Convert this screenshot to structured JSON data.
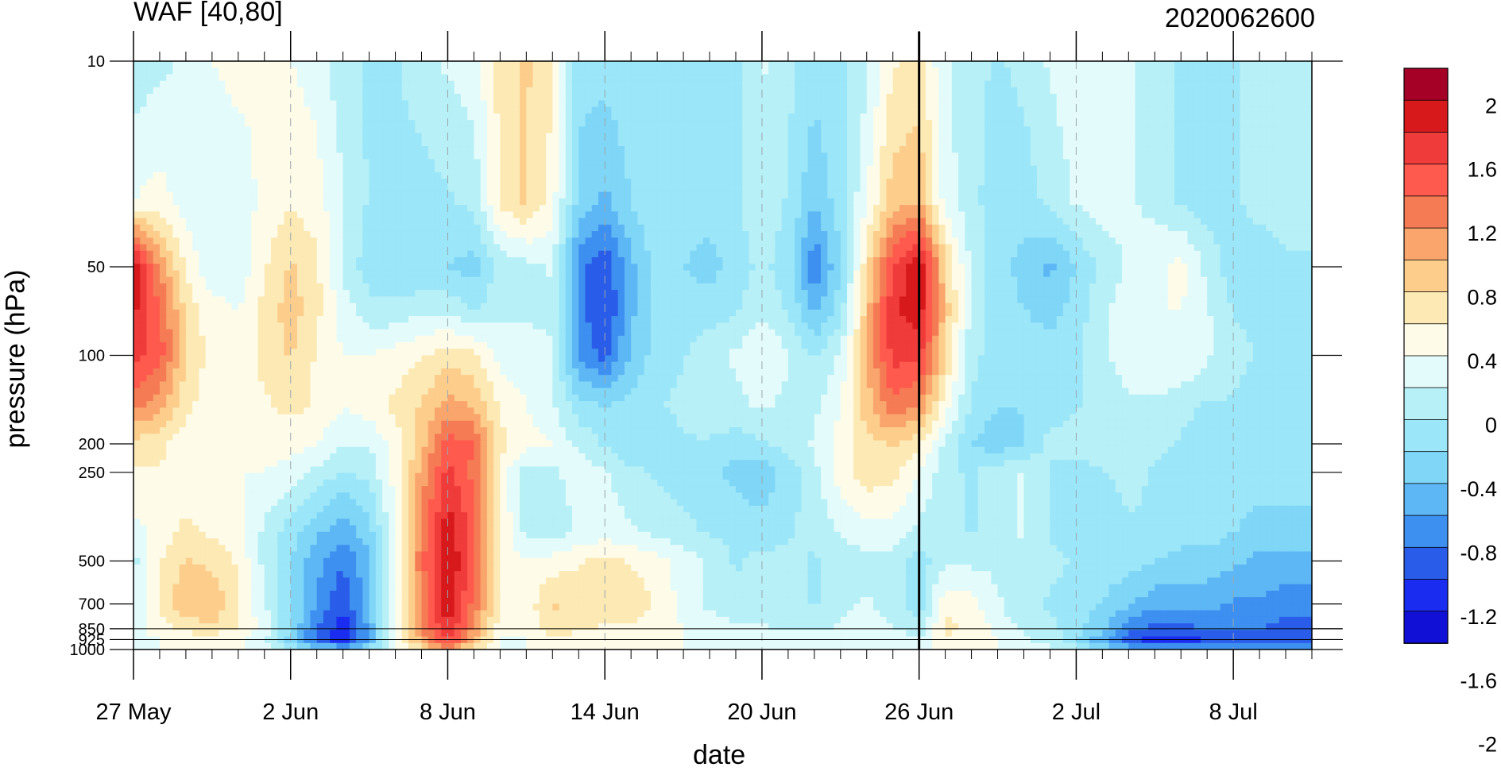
{
  "chart_data": {
    "type": "heatmap",
    "title_left": "WAF [40,80]",
    "title_right": "2020062600",
    "xlabel": "date",
    "ylabel": "pressure (hPa)",
    "x_ticks": [
      "27 May",
      "2 Jun",
      "8 Jun",
      "14 Jun",
      "20 Jun",
      "26 Jun",
      "2 Jul",
      "8 Jul"
    ],
    "x_tick_days": [
      0,
      6,
      12,
      18,
      24,
      30,
      36,
      42
    ],
    "x_range_days": [
      0,
      45
    ],
    "y_ticks": [
      "10",
      "50",
      "100",
      "200",
      "250",
      "500",
      "700",
      "850",
      "925",
      "1000"
    ],
    "y_tick_values": [
      10,
      50,
      100,
      200,
      250,
      500,
      700,
      850,
      925,
      1000
    ],
    "y_scale": "log",
    "y_range": [
      1000,
      10
    ],
    "marker_line_day": 30,
    "colorbar_labels": [
      "2",
      "1.6",
      "1.2",
      "0.8",
      "0.4",
      "0",
      "-0.4",
      "-0.8",
      "-1.2",
      "-1.6",
      "-2"
    ],
    "colorbar_colors": [
      "#a50026",
      "#d7191c",
      "#f03b3b",
      "#ff5a4d",
      "#f57b55",
      "#f9a56c",
      "#fdcd8c",
      "#fce9b4",
      "#fefce8",
      "#e4fbfb",
      "#b7f0f6",
      "#9be6f8",
      "#7fd6f7",
      "#5eb7f5",
      "#3d8ff0",
      "#2a5cea",
      "#1a2cf0",
      "#1010d6"
    ],
    "values_days": [
      0,
      1,
      2,
      3,
      4,
      5,
      6,
      7,
      8,
      9,
      10,
      11,
      12,
      13,
      14,
      15,
      16,
      17,
      18,
      19,
      20,
      21,
      22,
      23,
      24,
      25,
      26,
      27,
      28,
      29,
      30,
      31,
      32,
      33,
      34,
      35,
      36,
      37,
      38,
      39,
      40,
      41,
      42,
      43,
      44,
      45
    ],
    "values_levels": [
      10,
      30,
      50,
      70,
      100,
      150,
      200,
      250,
      400,
      500,
      700,
      850,
      925,
      1000
    ],
    "values": [
      [
        -0.4,
        -0.3,
        -0.2,
        0,
        0.1,
        0.05,
        0,
        -0.1,
        -0.4,
        -0.5,
        -0.5,
        -0.3,
        -0.2,
        -0.1,
        0.3,
        0.5,
        0.3,
        -0.6,
        -0.6,
        -0.5,
        -0.5,
        -0.6,
        -0.6,
        -0.6,
        -0.2,
        -0.4,
        -0.6,
        -0.5,
        -0.3,
        0.2,
        0.3,
        -0.2,
        -0.4,
        -0.5,
        -0.4,
        -0.2,
        -0.1,
        -0.1,
        -0.2,
        -0.3,
        -0.5,
        -0.6,
        -0.5,
        -0.4,
        -0.4,
        -0.4
      ],
      [
        0,
        0.1,
        -0.1,
        -0.2,
        -0.2,
        0.1,
        0.2,
        0.1,
        -0.2,
        -0.5,
        -0.6,
        -0.6,
        -0.5,
        -0.4,
        0.3,
        0.5,
        0.1,
        -0.8,
        -1.0,
        -0.7,
        -0.5,
        -0.6,
        -0.6,
        -0.5,
        -0.3,
        -0.5,
        -0.9,
        -0.6,
        0,
        0.6,
        0.7,
        -0.1,
        -0.4,
        -0.6,
        -0.6,
        -0.4,
        -0.2,
        -0.1,
        -0.2,
        -0.3,
        -0.5,
        -0.6,
        -0.5,
        -0.4,
        -0.4,
        -0.4
      ],
      [
        1.9,
        0.9,
        0.2,
        -0.2,
        -0.2,
        0.2,
        0.5,
        0.3,
        -0.3,
        -0.6,
        -0.7,
        -0.7,
        -0.7,
        -0.8,
        -0.4,
        -0.3,
        -0.2,
        -1.3,
        -1.6,
        -1.0,
        -0.6,
        -0.7,
        -0.8,
        -0.6,
        -0.4,
        -0.6,
        -1.4,
        -0.7,
        0.4,
        1.4,
        1.9,
        0.5,
        -0.3,
        -0.6,
        -0.8,
        -1.0,
        -0.7,
        -0.4,
        -0.2,
        -0.1,
        0.1,
        -0.3,
        -0.6,
        -0.6,
        -0.5,
        -0.5
      ],
      [
        1.7,
        1.2,
        0.4,
        0.1,
        0,
        0.3,
        0.6,
        0.3,
        -0.1,
        -0.4,
        -0.4,
        -0.3,
        -0.3,
        -0.5,
        -0.3,
        -0.3,
        -0.3,
        -1.3,
        -1.7,
        -1.0,
        -0.6,
        -0.6,
        -0.6,
        -0.5,
        -0.3,
        -0.5,
        -1.0,
        -0.6,
        0.6,
        1.6,
        1.8,
        0.6,
        -0.3,
        -0.6,
        -0.7,
        -0.8,
        -0.6,
        -0.3,
        -0.1,
        0,
        0,
        -0.2,
        -0.5,
        -0.5,
        -0.5,
        -0.5
      ],
      [
        1.5,
        1.3,
        0.5,
        0.1,
        0.1,
        0.3,
        0.5,
        0.2,
        0,
        0,
        0.1,
        0.2,
        0.4,
        0.3,
        -0.1,
        -0.1,
        -0.2,
        -1.2,
        -1.5,
        -0.9,
        -0.6,
        -0.5,
        -0.3,
        -0.2,
        0,
        -0.2,
        -0.5,
        -0.2,
        0.7,
        1.5,
        1.5,
        0.5,
        -0.4,
        -0.6,
        -0.6,
        -0.6,
        -0.5,
        -0.3,
        -0.1,
        0,
        0,
        -0.2,
        -0.4,
        -0.5,
        -0.5,
        -0.5
      ],
      [
        1.0,
        0.8,
        0.3,
        0.1,
        0.2,
        0.2,
        0.3,
        0.2,
        0,
        0.1,
        0.3,
        0.5,
        0.8,
        0.7,
        0.2,
        0,
        -0.2,
        -0.6,
        -0.7,
        -0.6,
        -0.5,
        -0.4,
        -0.3,
        -0.3,
        -0.2,
        -0.3,
        -0.3,
        0,
        0.6,
        1.1,
        0.9,
        0.1,
        -0.5,
        -0.7,
        -0.7,
        -0.6,
        -0.5,
        -0.4,
        -0.3,
        -0.3,
        -0.4,
        -0.5,
        -0.5,
        -0.6,
        -0.6,
        -0.6
      ],
      [
        0.4,
        0.3,
        0.1,
        0,
        0.1,
        0.1,
        0.1,
        0,
        -0.2,
        -0.2,
        0.1,
        0.6,
        1.3,
        1.2,
        0.3,
        0.1,
        0,
        -0.3,
        -0.5,
        -0.7,
        -0.7,
        -0.5,
        -0.5,
        -0.6,
        -0.5,
        -0.4,
        -0.2,
        0.1,
        0.4,
        0.5,
        0.3,
        -0.3,
        -0.7,
        -0.9,
        -0.7,
        -0.4,
        -0.3,
        -0.3,
        -0.3,
        -0.4,
        -0.5,
        -0.6,
        -0.6,
        -0.7,
        -0.7,
        -0.7
      ],
      [
        0.2,
        0.2,
        0.1,
        0,
        0,
        0,
        -0.1,
        -0.3,
        -0.5,
        -0.4,
        0.1,
        0.8,
        1.5,
        1.1,
        0.2,
        -0.4,
        -0.3,
        -0.1,
        -0.2,
        -0.4,
        -0.5,
        -0.6,
        -0.6,
        -0.8,
        -0.9,
        -0.6,
        -0.3,
        0.1,
        0.4,
        0.3,
        0,
        -0.4,
        -0.5,
        -0.3,
        -0.2,
        -0.5,
        -0.6,
        -0.5,
        -0.4,
        -0.5,
        -0.6,
        -0.6,
        -0.6,
        -0.6,
        -0.6,
        -0.6
      ],
      [
        -0.1,
        0.1,
        0.3,
        0.2,
        0.1,
        -0.3,
        -0.6,
        -0.9,
        -1.1,
        -0.8,
        0,
        1.0,
        1.8,
        1.3,
        0.2,
        -0.3,
        -0.4,
        -0.2,
        -0.1,
        -0.2,
        -0.3,
        -0.4,
        -0.5,
        -0.5,
        -0.6,
        -0.5,
        -0.4,
        -0.2,
        -0.1,
        -0.1,
        -0.3,
        -0.4,
        -0.5,
        -0.3,
        -0.2,
        -0.5,
        -0.6,
        -0.6,
        -0.5,
        -0.5,
        -0.6,
        -0.6,
        -0.7,
        -0.8,
        -0.8,
        -0.8
      ],
      [
        -0.3,
        0.2,
        0.5,
        0.4,
        0.2,
        -0.3,
        -0.7,
        -1.1,
        -1.4,
        -1.0,
        0,
        1.1,
        1.9,
        1.3,
        0.2,
        0,
        0.1,
        0.2,
        0.3,
        0.2,
        0.1,
        -0.1,
        -0.3,
        -0.5,
        -0.4,
        -0.4,
        -0.5,
        -0.4,
        -0.3,
        -0.3,
        -0.6,
        -0.3,
        -0.3,
        -0.3,
        -0.3,
        -0.4,
        -0.5,
        -0.6,
        -0.6,
        -0.7,
        -0.8,
        -0.8,
        -0.9,
        -1.0,
        -1.0,
        -1.0
      ],
      [
        -0.2,
        0.3,
        0.7,
        0.7,
        0.3,
        -0.2,
        -0.7,
        -1.2,
        -1.6,
        -1.0,
        0,
        1.0,
        1.8,
        1.1,
        0.2,
        0.1,
        0.5,
        0.4,
        0.3,
        0.4,
        0.2,
        -0.1,
        -0.3,
        -0.4,
        -0.3,
        -0.4,
        -0.5,
        -0.3,
        -0.2,
        -0.4,
        -0.6,
        0.2,
        0.1,
        -0.2,
        -0.4,
        -0.5,
        -0.6,
        -0.7,
        -0.9,
        -1.1,
        -1.1,
        -1.1,
        -1.2,
        -1.2,
        -1.3,
        -1.3
      ],
      [
        -0.1,
        0.1,
        0.3,
        0.4,
        0.2,
        -0.1,
        -0.7,
        -1.4,
        -1.8,
        -1.1,
        0,
        0.9,
        1.7,
        0.9,
        0.1,
        0,
        0.4,
        0.3,
        0.2,
        0.2,
        0.1,
        0,
        -0.1,
        -0.2,
        -0.2,
        -0.3,
        -0.3,
        -0.2,
        -0.1,
        -0.2,
        -0.4,
        0.3,
        0.2,
        -0.1,
        -0.3,
        -0.4,
        -0.6,
        -0.9,
        -1.3,
        -1.5,
        -1.5,
        -1.4,
        -1.4,
        -1.4,
        -1.5,
        -1.5
      ],
      [
        0,
        0,
        0.1,
        0.1,
        0.1,
        -0.2,
        -0.8,
        -1.5,
        -1.8,
        -1.1,
        0,
        0.8,
        1.5,
        0.7,
        0,
        0,
        0.2,
        0.1,
        0.1,
        0.1,
        0.1,
        0,
        0,
        -0.1,
        -0.1,
        -0.1,
        -0.1,
        -0.1,
        0,
        -0.1,
        -0.2,
        0.2,
        0.1,
        0,
        -0.2,
        -0.3,
        -0.7,
        -1.1,
        -1.5,
        -1.8,
        -1.8,
        -1.6,
        -1.5,
        -1.6,
        -1.6,
        -1.6
      ],
      [
        0,
        0,
        0,
        0,
        0,
        -0.1,
        -0.4,
        -0.8,
        -1.0,
        -0.6,
        0,
        0.4,
        0.8,
        0.4,
        0,
        0,
        0.1,
        0.1,
        0,
        0,
        0,
        0,
        0,
        0,
        0,
        0,
        0,
        0,
        0,
        0,
        -0.1,
        0.1,
        0,
        0,
        -0.1,
        -0.2,
        -0.4,
        -0.7,
        -1.0,
        -1.2,
        -1.2,
        -1.1,
        -1.0,
        -1.1,
        -1.1,
        -1.1
      ]
    ]
  }
}
